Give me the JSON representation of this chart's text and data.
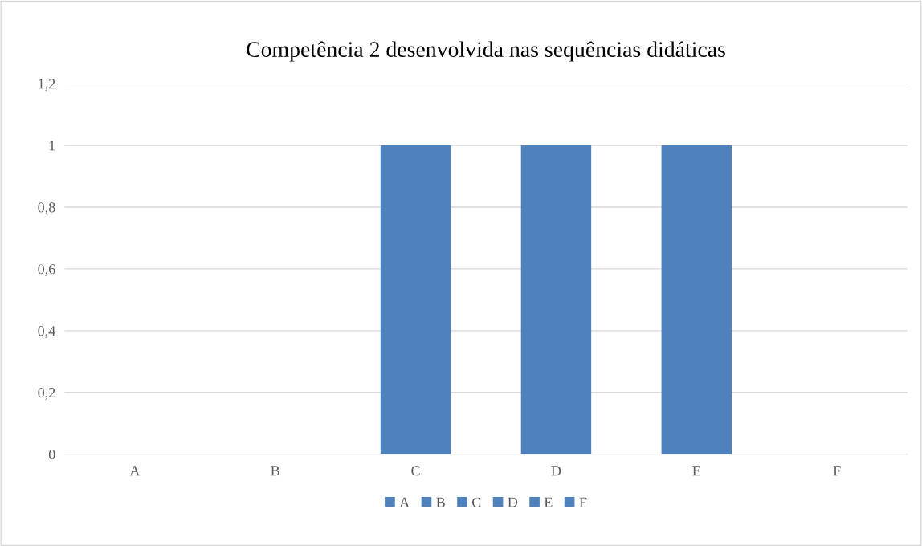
{
  "chart_data": {
    "type": "bar",
    "title": "Competência 2 desenvolvida nas sequências didáticas",
    "categories": [
      "A",
      "B",
      "C",
      "D",
      "E",
      "F"
    ],
    "series": [
      {
        "name": "A",
        "color": "#4f81bd",
        "values": [
          0,
          null,
          null,
          null,
          null,
          null
        ]
      },
      {
        "name": "B",
        "color": "#4f81bd",
        "values": [
          null,
          0,
          null,
          null,
          null,
          null
        ]
      },
      {
        "name": "C",
        "color": "#4f81bd",
        "values": [
          null,
          null,
          1,
          null,
          null,
          null
        ]
      },
      {
        "name": "D",
        "color": "#4f81bd",
        "values": [
          null,
          null,
          null,
          1,
          null,
          null
        ]
      },
      {
        "name": "E",
        "color": "#4f81bd",
        "values": [
          null,
          null,
          null,
          null,
          1,
          null
        ]
      },
      {
        "name": "F",
        "color": "#4f81bd",
        "values": [
          null,
          null,
          null,
          null,
          null,
          0
        ]
      }
    ],
    "ylim": [
      0,
      1.2
    ],
    "yticks": [
      {
        "value": 0,
        "label": "0"
      },
      {
        "value": 0.2,
        "label": "0,2"
      },
      {
        "value": 0.4,
        "label": "0,4"
      },
      {
        "value": 0.6,
        "label": "0,6"
      },
      {
        "value": 0.8,
        "label": "0,8"
      },
      {
        "value": 1,
        "label": "1"
      },
      {
        "value": 1.2,
        "label": "1,2"
      }
    ],
    "grid": "y",
    "legend": "bottom"
  }
}
